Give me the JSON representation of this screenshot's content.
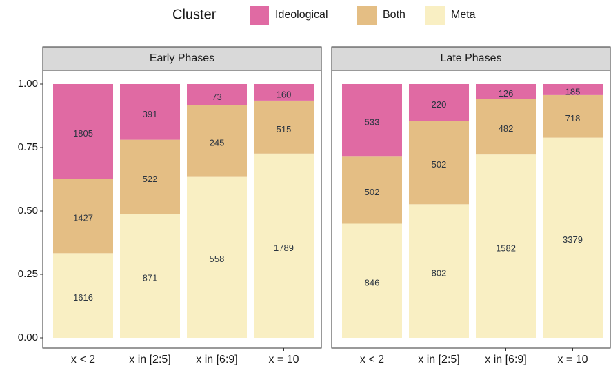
{
  "chart_data": [
    {
      "type": "stacked_percent",
      "title": "Early Phases",
      "legend_title": "Cluster",
      "categories": [
        "x < 2",
        "x in [2:5]",
        "x in [6:9]",
        "x = 10"
      ],
      "series": [
        {
          "name": "Ideological",
          "color": "#e06aa3",
          "values": [
            1805,
            391,
            73,
            160
          ]
        },
        {
          "name": "Both",
          "color": "#e4be84",
          "values": [
            1427,
            522,
            245,
            515
          ]
        },
        {
          "name": "Meta",
          "color": "#f9efc3",
          "values": [
            1616,
            871,
            558,
            1789
          ]
        }
      ],
      "ylim": [
        0,
        1
      ],
      "yticks": [
        {
          "value": 0,
          "label": "0.00"
        },
        {
          "value": 0.25,
          "label": "0.25"
        },
        {
          "value": 0.5,
          "label": "0.50"
        },
        {
          "value": 0.75,
          "label": "0.75"
        },
        {
          "value": 1,
          "label": "1.00"
        }
      ]
    },
    {
      "type": "stacked_percent",
      "title": "Late Phases",
      "categories": [
        "x < 2",
        "x in [2:5]",
        "x in [6:9]",
        "x = 10"
      ],
      "series": [
        {
          "name": "Ideological",
          "color": "#e06aa3",
          "values": [
            533,
            220,
            126,
            185
          ]
        },
        {
          "name": "Both",
          "color": "#e4be84",
          "values": [
            502,
            502,
            482,
            718
          ]
        },
        {
          "name": "Meta",
          "color": "#f9efc3",
          "values": [
            846,
            802,
            1582,
            3379
          ]
        }
      ],
      "ylim": [
        0,
        1
      ]
    }
  ]
}
